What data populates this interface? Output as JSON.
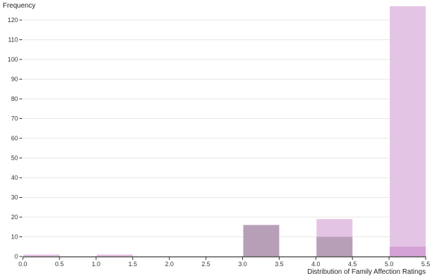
{
  "chart_data": {
    "type": "bar",
    "subtype": "overlapping histogram",
    "xlabel": "Distribution of Family Affection Ratings",
    "ylabel": "Frequency",
    "xlim": [
      0,
      5.5
    ],
    "ylim": [
      0,
      127
    ],
    "grid": "horizontal",
    "bin_edges": [
      0,
      0.5,
      1,
      1.5,
      2,
      2.5,
      3,
      3.5,
      4,
      4.5,
      5,
      5.5
    ],
    "x_ticks": [
      "0.0",
      "0.5",
      "1.0",
      "1.5",
      "2.0",
      "2.5",
      "3.0",
      "3.5",
      "4.0",
      "4.5",
      "5.0",
      "5.5"
    ],
    "y_ticks": [
      "0",
      "10",
      "20",
      "30",
      "40",
      "50",
      "60",
      "70",
      "80",
      "90",
      "100",
      "110",
      "120"
    ],
    "series": [
      {
        "color": "#e4c4e4",
        "values": [
          1,
          0,
          1,
          0,
          0,
          0,
          0,
          0,
          19,
          0,
          127
        ]
      },
      {
        "color": "#b89fb8",
        "values": [
          0,
          0,
          0,
          0,
          0,
          0,
          16,
          0,
          10,
          0,
          0
        ]
      },
      {
        "color": "#d4a2d4",
        "values": [
          0,
          0,
          0,
          0,
          0,
          0,
          0,
          0,
          0,
          0,
          5
        ]
      }
    ]
  }
}
